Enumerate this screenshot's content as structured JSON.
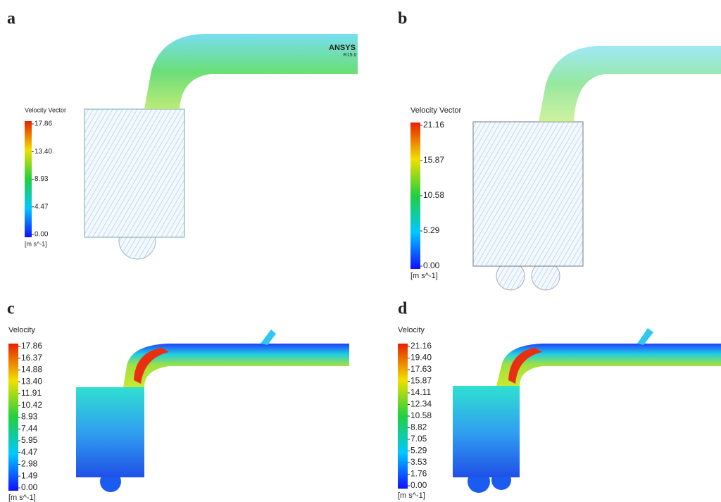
{
  "panels": [
    {
      "label": "a",
      "legend_title": "Velocity Vector",
      "ticks": [
        "17.86",
        "13.40",
        "8.93",
        "4.47",
        "0.00"
      ],
      "unit": "[m s^-1]",
      "watermark": "ANSYS",
      "watermark_version": "R15.0"
    },
    {
      "label": "b",
      "legend_title": "Velocity Vector",
      "ticks": [
        "21.16",
        "15.87",
        "10.58",
        "5.29",
        "0.00"
      ],
      "unit": "[m s^-1]"
    },
    {
      "label": "c",
      "legend_title": "Velocity",
      "ticks": [
        "17.86",
        "16.37",
        "14.88",
        "13.40",
        "11.91",
        "10.42",
        "8.93",
        "7.44",
        "5.95",
        "4.47",
        "2.98",
        "1.49",
        "0.00"
      ],
      "unit": "[m s^-1]"
    },
    {
      "label": "d",
      "legend_title": "Velocity",
      "ticks": [
        "21.16",
        "19.40",
        "17.63",
        "15.87",
        "14.11",
        "12.34",
        "10.58",
        "8.82",
        "7.05",
        "5.29",
        "3.53",
        "1.76",
        "0.00"
      ],
      "unit": "[m s^-1]"
    }
  ]
}
